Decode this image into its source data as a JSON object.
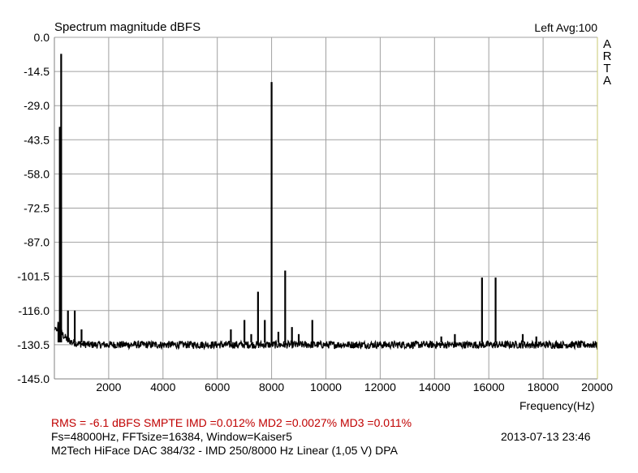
{
  "header": {
    "title": "Spectrum magnitude dBFS",
    "channel_avg": "Left  Avg:100",
    "brand_letters": [
      "A",
      "R",
      "T",
      "A"
    ]
  },
  "footer": {
    "xlabel": "Frequency(Hz)",
    "measurements": "RMS =   -6.1 dBFS   SMPTE IMD =0.012%  MD2 =0.0027%  MD3 =0.011%",
    "settings": "Fs=48000Hz, FFTsize=16384, Window=Kaiser5",
    "timestamp": "2013-07-13  23:46",
    "device": "M2Tech HiFace DAC 384/32 - IMD 250/8000 Hz Linear (1,05 V)      DPA"
  },
  "colors": {
    "grid": "#a0a0a0",
    "frame": "#808080",
    "trace": "#000000",
    "highlight": "#c00000",
    "right_border": "#c8c870"
  },
  "chart_data": {
    "type": "line",
    "title": "Spectrum magnitude dBFS",
    "xlabel": "Frequency(Hz)",
    "ylabel": "",
    "xlim": [
      0,
      20000
    ],
    "ylim": [
      -145,
      0
    ],
    "grid": true,
    "x_ticks": [
      "2000",
      "4000",
      "6000",
      "8000",
      "10000",
      "12000",
      "14000",
      "16000",
      "18000",
      "20000"
    ],
    "x_tick_values": [
      2000,
      4000,
      6000,
      8000,
      10000,
      12000,
      14000,
      16000,
      18000,
      20000
    ],
    "y_ticks": [
      "0.0",
      "-14.5",
      "-29.0",
      "-43.5",
      "-58.0",
      "-72.5",
      "-87.0",
      "-101.5",
      "-116.0",
      "-130.5",
      "-145.0"
    ],
    "y_tick_values": [
      0,
      -14.5,
      -29,
      -43.5,
      -58,
      -72.5,
      -87,
      -101.5,
      -116,
      -130.5,
      -145
    ],
    "noise_floor_db": -130.5,
    "peaks": [
      {
        "x": 150,
        "y": -123
      },
      {
        "x": 200,
        "y": -38
      },
      {
        "x": 250,
        "y": -7
      },
      {
        "x": 500,
        "y": -116
      },
      {
        "x": 750,
        "y": -116
      },
      {
        "x": 1000,
        "y": -124
      },
      {
        "x": 6500,
        "y": -124
      },
      {
        "x": 7000,
        "y": -120
      },
      {
        "x": 7250,
        "y": -126
      },
      {
        "x": 7500,
        "y": -108
      },
      {
        "x": 7750,
        "y": -120
      },
      {
        "x": 8000,
        "y": -19
      },
      {
        "x": 8250,
        "y": -125
      },
      {
        "x": 8500,
        "y": -99
      },
      {
        "x": 8750,
        "y": -123
      },
      {
        "x": 9000,
        "y": -126
      },
      {
        "x": 9500,
        "y": -120
      },
      {
        "x": 14250,
        "y": -127
      },
      {
        "x": 14750,
        "y": -126
      },
      {
        "x": 15750,
        "y": -102
      },
      {
        "x": 16250,
        "y": -102
      },
      {
        "x": 17250,
        "y": -126
      },
      {
        "x": 17750,
        "y": -127
      }
    ]
  }
}
